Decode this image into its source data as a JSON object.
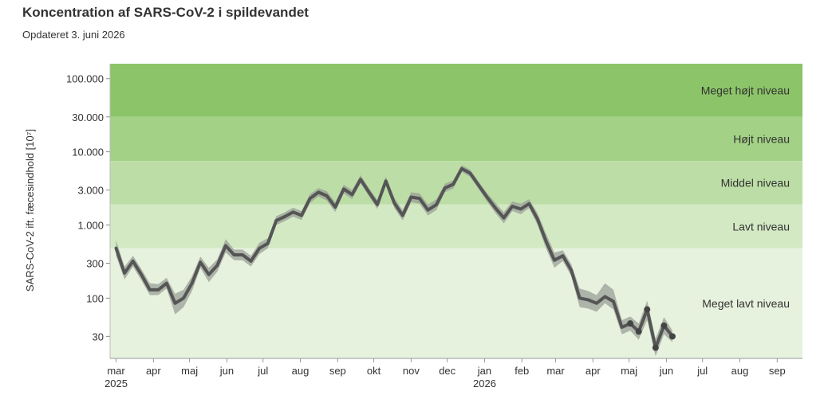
{
  "chart_data": {
    "type": "line",
    "title": "Koncentration af SARS-CoV-2 i spildevandet",
    "subtitle": "Opdateret 3. juni 2026",
    "ylabel": "SARS-CoV-2 ift. fæcesindhold [10⁷]",
    "yscale": "log",
    "ylim": [
      15,
      160000
    ],
    "xlim": [
      "2025-02-24",
      "2026-09-22"
    ],
    "yticks": [
      {
        "value": 30,
        "label": "30"
      },
      {
        "value": 100,
        "label": "100"
      },
      {
        "value": 300,
        "label": "300"
      },
      {
        "value": 1000,
        "label": "1.000"
      },
      {
        "value": 3000,
        "label": "3.000"
      },
      {
        "value": 10000,
        "label": "10.000"
      },
      {
        "value": 30000,
        "label": "30.000"
      },
      {
        "value": 100000,
        "label": "100.000"
      }
    ],
    "xticks": [
      {
        "date": "2025-03-01",
        "label": "mar",
        "year": "2025"
      },
      {
        "date": "2025-04-01",
        "label": "apr"
      },
      {
        "date": "2025-05-01",
        "label": "maj"
      },
      {
        "date": "2025-06-01",
        "label": "jun"
      },
      {
        "date": "2025-07-01",
        "label": "jul"
      },
      {
        "date": "2025-08-01",
        "label": "aug"
      },
      {
        "date": "2025-09-01",
        "label": "sep"
      },
      {
        "date": "2025-10-01",
        "label": "okt"
      },
      {
        "date": "2025-11-01",
        "label": "nov"
      },
      {
        "date": "2025-12-01",
        "label": "dec"
      },
      {
        "date": "2026-01-01",
        "label": "jan",
        "year": "2026"
      },
      {
        "date": "2026-02-01",
        "label": "feb"
      },
      {
        "date": "2026-03-01",
        "label": "mar"
      },
      {
        "date": "2026-04-01",
        "label": "apr"
      },
      {
        "date": "2026-05-01",
        "label": "maj"
      },
      {
        "date": "2026-06-01",
        "label": "jun"
      },
      {
        "date": "2026-07-01",
        "label": "jul"
      },
      {
        "date": "2026-08-01",
        "label": "aug"
      },
      {
        "date": "2026-09-01",
        "label": "sep"
      }
    ],
    "bands": [
      {
        "label": "Meget højt niveau",
        "from": 30000,
        "to": 160000,
        "color": "#8cc469"
      },
      {
        "label": "Højt niveau",
        "from": 7500,
        "to": 30000,
        "color": "#a3d185"
      },
      {
        "label": "Middel niveau",
        "from": 1900,
        "to": 7500,
        "color": "#bcdea6"
      },
      {
        "label": "Lavt niveau",
        "from": 480,
        "to": 1900,
        "color": "#d3e9c4"
      },
      {
        "label": "Meget lavt niveau",
        "from": 15,
        "to": 480,
        "color": "#e7f2de"
      }
    ],
    "series": [
      {
        "line_color": "#555555",
        "ci_color": "#9a9f97",
        "points": [
          {
            "x": "2025-03-01",
            "y": 480,
            "lo": 380,
            "hi": 620
          },
          {
            "x": "2025-03-08",
            "y": 220,
            "lo": 180,
            "hi": 270
          },
          {
            "x": "2025-03-15",
            "y": 320,
            "lo": 270,
            "hi": 380
          },
          {
            "x": "2025-03-22",
            "y": 210,
            "lo": 175,
            "hi": 250
          },
          {
            "x": "2025-03-29",
            "y": 130,
            "lo": 110,
            "hi": 160
          },
          {
            "x": "2025-04-05",
            "y": 130,
            "lo": 110,
            "hi": 155
          },
          {
            "x": "2025-04-12",
            "y": 160,
            "lo": 135,
            "hi": 190
          },
          {
            "x": "2025-04-19",
            "y": 85,
            "lo": 60,
            "hi": 115
          },
          {
            "x": "2025-04-26",
            "y": 100,
            "lo": 75,
            "hi": 130
          },
          {
            "x": "2025-05-03",
            "y": 160,
            "lo": 125,
            "hi": 200
          },
          {
            "x": "2025-05-10",
            "y": 310,
            "lo": 260,
            "hi": 370
          },
          {
            "x": "2025-05-17",
            "y": 210,
            "lo": 165,
            "hi": 260
          },
          {
            "x": "2025-05-24",
            "y": 280,
            "lo": 230,
            "hi": 340
          },
          {
            "x": "2025-05-31",
            "y": 520,
            "lo": 420,
            "hi": 640
          },
          {
            "x": "2025-06-07",
            "y": 390,
            "lo": 330,
            "hi": 460
          },
          {
            "x": "2025-06-14",
            "y": 390,
            "lo": 330,
            "hi": 460
          },
          {
            "x": "2025-06-21",
            "y": 320,
            "lo": 270,
            "hi": 380
          },
          {
            "x": "2025-06-28",
            "y": 480,
            "lo": 400,
            "hi": 570
          },
          {
            "x": "2025-07-05",
            "y": 560,
            "lo": 480,
            "hi": 660
          },
          {
            "x": "2025-07-12",
            "y": 1150,
            "lo": 1000,
            "hi": 1320
          },
          {
            "x": "2025-07-19",
            "y": 1300,
            "lo": 1130,
            "hi": 1490
          },
          {
            "x": "2025-07-26",
            "y": 1500,
            "lo": 1300,
            "hi": 1720
          },
          {
            "x": "2025-08-02",
            "y": 1350,
            "lo": 1170,
            "hi": 1550
          },
          {
            "x": "2025-08-09",
            "y": 2300,
            "lo": 2000,
            "hi": 2650
          },
          {
            "x": "2025-08-16",
            "y": 2800,
            "lo": 2450,
            "hi": 3200
          },
          {
            "x": "2025-08-23",
            "y": 2500,
            "lo": 2150,
            "hi": 2900
          },
          {
            "x": "2025-08-30",
            "y": 1750,
            "lo": 1500,
            "hi": 2050
          },
          {
            "x": "2025-09-06",
            "y": 3100,
            "lo": 2700,
            "hi": 3550
          },
          {
            "x": "2025-09-13",
            "y": 2600,
            "lo": 2250,
            "hi": 3000
          },
          {
            "x": "2025-09-20",
            "y": 4200,
            "lo": 3700,
            "hi": 4800
          },
          {
            "x": "2025-09-27",
            "y": 2800,
            "lo": 2450,
            "hi": 3200
          },
          {
            "x": "2025-10-04",
            "y": 1900,
            "lo": 1650,
            "hi": 2200
          },
          {
            "x": "2025-10-11",
            "y": 4000,
            "lo": 3500,
            "hi": 4600
          },
          {
            "x": "2025-10-18",
            "y": 2000,
            "lo": 1700,
            "hi": 2350
          },
          {
            "x": "2025-10-25",
            "y": 1350,
            "lo": 1150,
            "hi": 1600
          },
          {
            "x": "2025-11-01",
            "y": 2400,
            "lo": 2050,
            "hi": 2800
          },
          {
            "x": "2025-11-08",
            "y": 2300,
            "lo": 1950,
            "hi": 2700
          },
          {
            "x": "2025-11-15",
            "y": 1600,
            "lo": 1350,
            "hi": 1900
          },
          {
            "x": "2025-11-22",
            "y": 1900,
            "lo": 1600,
            "hi": 2250
          },
          {
            "x": "2025-11-29",
            "y": 3200,
            "lo": 2800,
            "hi": 3650
          },
          {
            "x": "2025-12-06",
            "y": 3600,
            "lo": 3150,
            "hi": 4100
          },
          {
            "x": "2025-12-13",
            "y": 5900,
            "lo": 5300,
            "hi": 6600
          },
          {
            "x": "2025-12-20",
            "y": 5100,
            "lo": 4550,
            "hi": 5700
          },
          {
            "x": "2025-12-27",
            "y": 3500,
            "lo": 3100,
            "hi": 3950
          },
          {
            "x": "2026-01-03",
            "y": 2400,
            "lo": 2100,
            "hi": 2750
          },
          {
            "x": "2026-01-10",
            "y": 1700,
            "lo": 1450,
            "hi": 2000
          },
          {
            "x": "2026-01-17",
            "y": 1250,
            "lo": 1050,
            "hi": 1500
          },
          {
            "x": "2026-01-24",
            "y": 1800,
            "lo": 1550,
            "hi": 2100
          },
          {
            "x": "2026-01-31",
            "y": 1650,
            "lo": 1400,
            "hi": 1950
          },
          {
            "x": "2026-02-07",
            "y": 1950,
            "lo": 1700,
            "hi": 2250
          },
          {
            "x": "2026-02-14",
            "y": 1200,
            "lo": 1000,
            "hi": 1450
          },
          {
            "x": "2026-02-21",
            "y": 600,
            "lo": 480,
            "hi": 760
          },
          {
            "x": "2026-02-28",
            "y": 330,
            "lo": 260,
            "hi": 420
          },
          {
            "x": "2026-03-07",
            "y": 380,
            "lo": 320,
            "hi": 450
          },
          {
            "x": "2026-03-14",
            "y": 240,
            "lo": 200,
            "hi": 290
          },
          {
            "x": "2026-03-21",
            "y": 100,
            "lo": 75,
            "hi": 135
          },
          {
            "x": "2026-03-28",
            "y": 95,
            "lo": 72,
            "hi": 125
          },
          {
            "x": "2026-04-04",
            "y": 85,
            "lo": 65,
            "hi": 110
          },
          {
            "x": "2026-04-11",
            "y": 105,
            "lo": 85,
            "hi": 160
          },
          {
            "x": "2026-04-18",
            "y": 90,
            "lo": 70,
            "hi": 130
          },
          {
            "x": "2026-04-25",
            "y": 40,
            "lo": 32,
            "hi": 50
          },
          {
            "x": "2026-05-02",
            "y": 45,
            "lo": 36,
            "hi": 56
          },
          {
            "x": "2026-05-09",
            "y": 35,
            "lo": 27,
            "hi": 45
          },
          {
            "x": "2026-05-16",
            "y": 70,
            "lo": 50,
            "hi": 92
          },
          {
            "x": "2026-05-23",
            "y": 21,
            "lo": 16,
            "hi": 28
          },
          {
            "x": "2026-05-30",
            "y": 42,
            "lo": 32,
            "hi": 55
          },
          {
            "x": "2026-06-06",
            "y": 30,
            "lo": 25,
            "hi": 36
          }
        ]
      }
    ]
  }
}
